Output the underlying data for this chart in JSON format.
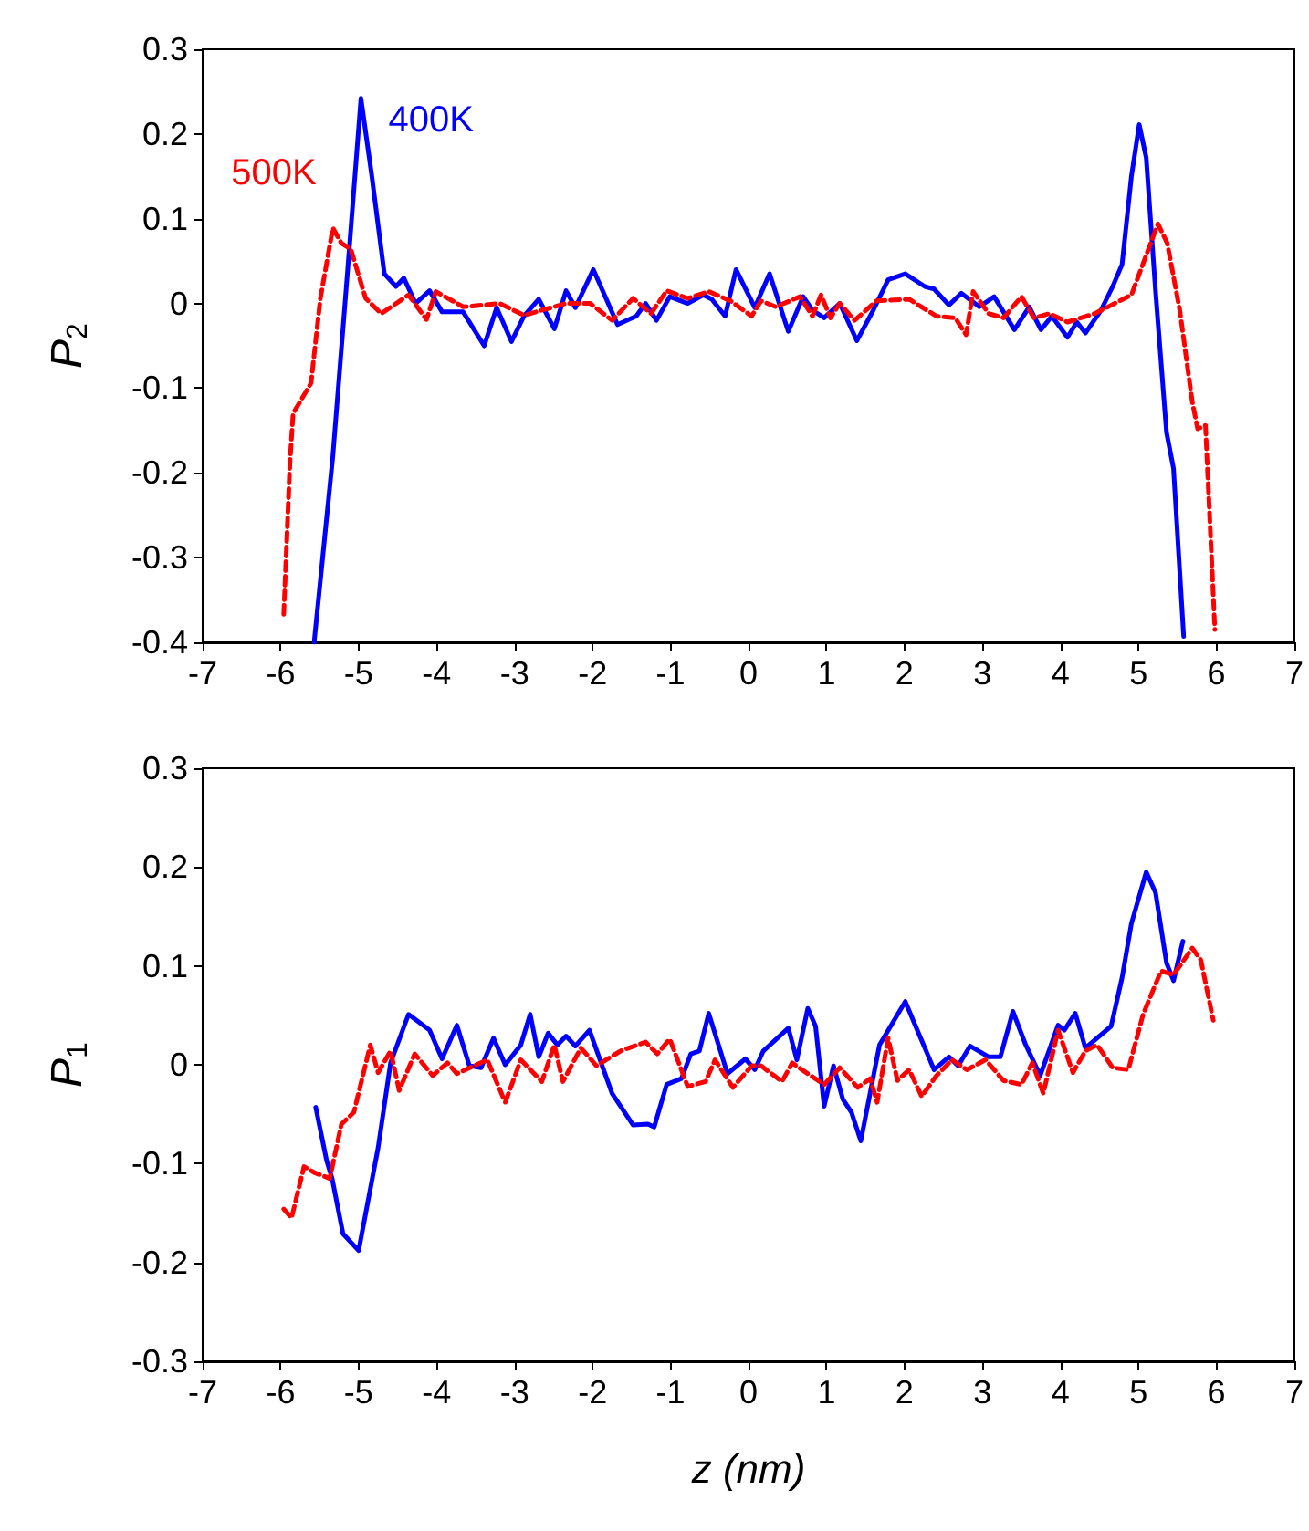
{
  "chart_data": [
    {
      "type": "line",
      "ylabel": "P$_{2}$",
      "xlim": [
        -7,
        7
      ],
      "xticks": [
        -7,
        -6,
        -5,
        -4,
        -3,
        -2,
        -1,
        0,
        1,
        2,
        3,
        4,
        5,
        6,
        7
      ],
      "ylim": [
        -0.4,
        0.3
      ],
      "yticks": [
        -0.4,
        -0.3,
        -0.2,
        -0.1,
        0,
        0.1,
        0.2,
        0.3
      ],
      "grid": false,
      "legend": false,
      "marker": "none",
      "series": [
        {
          "name": "400K",
          "color": "#0000ff",
          "line_style": "solid",
          "x": [
            -5.57,
            -5.33,
            -5.14,
            -4.97,
            -4.83,
            -4.67,
            -4.52,
            -4.42,
            -4.27,
            -4.09,
            -3.93,
            -3.66,
            -3.39,
            -3.23,
            -3.04,
            -2.88,
            -2.69,
            -2.49,
            -2.34,
            -2.22,
            -1.99,
            -1.68,
            -1.44,
            -1.32,
            -1.18,
            -1.01,
            -0.78,
            -0.58,
            -0.47,
            -0.3,
            -0.16,
            0.08,
            0.27,
            0.51,
            0.7,
            0.82,
            0.97,
            1.17,
            1.39,
            1.6,
            1.79,
            2.01,
            2.26,
            2.38,
            2.57,
            2.73,
            2.96,
            3.15,
            3.41,
            3.6,
            3.75,
            3.89,
            4.09,
            4.21,
            4.32,
            4.52,
            4.67,
            4.79,
            4.91,
            5.01,
            5.1,
            5.22,
            5.36,
            5.45,
            5.58
          ],
          "values": [
            -0.4,
            -0.18,
            0.04,
            0.242,
            0.15,
            0.035,
            0.02,
            0.03,
            0.0,
            0.015,
            -0.01,
            -0.01,
            -0.05,
            -0.005,
            -0.045,
            -0.015,
            0.005,
            -0.03,
            0.015,
            -0.005,
            0.04,
            -0.025,
            -0.015,
            0.0,
            -0.02,
            0.008,
            0.0,
            0.01,
            0.005,
            -0.015,
            0.04,
            -0.005,
            0.035,
            -0.033,
            0.008,
            -0.008,
            -0.017,
            0.0,
            -0.044,
            -0.008,
            0.028,
            0.035,
            0.02,
            0.017,
            -0.002,
            0.012,
            -0.004,
            0.008,
            -0.031,
            -0.004,
            -0.031,
            -0.015,
            -0.04,
            -0.022,
            -0.035,
            -0.008,
            0.02,
            0.046,
            0.15,
            0.211,
            0.172,
            0.014,
            -0.152,
            -0.195,
            -0.393
          ]
        },
        {
          "name": "500K",
          "color": "#ff0000",
          "line_style": "dashed",
          "x": [
            -5.96,
            -5.88,
            -5.84,
            -5.61,
            -5.49,
            -5.33,
            -5.22,
            -5.1,
            -4.91,
            -4.71,
            -4.36,
            -4.13,
            -4.01,
            -3.66,
            -3.19,
            -2.88,
            -2.34,
            -2.03,
            -1.75,
            -1.48,
            -1.25,
            -1.05,
            -0.78,
            -0.51,
            -0.23,
            0.04,
            0.16,
            0.35,
            0.66,
            0.82,
            0.93,
            1.05,
            1.17,
            1.36,
            1.64,
            2.06,
            2.41,
            2.65,
            2.79,
            2.88,
            3.08,
            3.27,
            3.5,
            3.66,
            3.86,
            4.09,
            4.44,
            4.91,
            5.1,
            5.25,
            5.37,
            5.53,
            5.69,
            5.76,
            5.86,
            5.98
          ],
          "values": [
            -0.367,
            -0.187,
            -0.13,
            -0.094,
            0.006,
            0.089,
            0.071,
            0.064,
            0.006,
            -0.012,
            0.01,
            -0.019,
            0.014,
            -0.004,
            0.0,
            -0.014,
            0.0,
            0.0,
            -0.02,
            0.006,
            -0.012,
            0.015,
            0.006,
            0.014,
            0.003,
            -0.015,
            0.003,
            -0.004,
            0.008,
            -0.015,
            0.01,
            -0.017,
            0.0,
            -0.02,
            0.003,
            0.005,
            -0.015,
            -0.017,
            -0.037,
            0.014,
            -0.012,
            -0.017,
            0.008,
            -0.017,
            -0.012,
            -0.022,
            -0.012,
            0.01,
            0.057,
            0.094,
            0.071,
            -0.008,
            -0.116,
            -0.148,
            -0.144,
            -0.385
          ]
        }
      ]
    },
    {
      "type": "line",
      "ylabel": "P$_{1}$",
      "xlabel": "z (nm)",
      "xlim": [
        -7,
        7
      ],
      "xticks": [
        -7,
        -6,
        -5,
        -4,
        -3,
        -2,
        -1,
        0,
        1,
        2,
        3,
        4,
        5,
        6,
        7
      ],
      "ylim": [
        -0.3,
        0.3
      ],
      "yticks": [
        -0.3,
        -0.2,
        -0.1,
        0,
        0.1,
        0.2,
        0.3
      ],
      "grid": false,
      "legend": false,
      "marker": "none",
      "series": [
        {
          "color": "#0000ff",
          "line_style": "solid",
          "x": [
            -5.55,
            -5.41,
            -5.34,
            -5.2,
            -5.0,
            -4.75,
            -4.59,
            -4.36,
            -4.09,
            -3.93,
            -3.74,
            -3.58,
            -3.43,
            -3.27,
            -3.12,
            -2.92,
            -2.8,
            -2.69,
            -2.57,
            -2.45,
            -2.34,
            -2.22,
            -2.04,
            -1.75,
            -1.48,
            -1.29,
            -1.21,
            -1.05,
            -0.86,
            -0.74,
            -0.63,
            -0.51,
            -0.27,
            -0.04,
            0.08,
            0.19,
            0.51,
            0.62,
            0.76,
            0.86,
            0.97,
            1.09,
            1.21,
            1.32,
            1.44,
            1.68,
            2.01,
            2.18,
            2.38,
            2.57,
            2.69,
            2.84,
            3.08,
            3.23,
            3.39,
            3.55,
            3.74,
            3.97,
            4.05,
            4.19,
            4.32,
            4.65,
            4.79,
            4.91,
            5.1,
            5.22,
            5.36,
            5.45,
            5.57
          ],
          "values": [
            -0.043,
            -0.097,
            -0.115,
            -0.171,
            -0.188,
            -0.084,
            0.002,
            0.051,
            0.035,
            0.006,
            0.04,
            -0.001,
            -0.003,
            0.027,
            0.0,
            0.02,
            0.051,
            0.008,
            0.032,
            0.02,
            0.029,
            0.019,
            0.035,
            -0.029,
            -0.061,
            -0.06,
            -0.063,
            -0.02,
            -0.014,
            0.011,
            0.014,
            0.052,
            -0.009,
            0.006,
            -0.005,
            0.014,
            0.037,
            0.005,
            0.057,
            0.039,
            -0.042,
            -0.001,
            -0.035,
            -0.048,
            -0.077,
            0.02,
            0.064,
            0.032,
            -0.005,
            0.008,
            -0.001,
            0.019,
            0.008,
            0.008,
            0.054,
            0.021,
            -0.011,
            0.04,
            0.035,
            0.052,
            0.017,
            0.039,
            0.088,
            0.143,
            0.195,
            0.174,
            0.103,
            0.085,
            0.125
          ]
        },
        {
          "color": "#ff0000",
          "line_style": "dashed",
          "x": [
            -5.96,
            -5.86,
            -5.7,
            -5.57,
            -5.37,
            -5.22,
            -5.06,
            -4.85,
            -4.75,
            -4.59,
            -4.48,
            -4.28,
            -4.05,
            -3.86,
            -3.74,
            -3.35,
            -3.12,
            -2.92,
            -2.65,
            -2.49,
            -2.38,
            -2.15,
            -1.95,
            -1.64,
            -1.32,
            -1.17,
            -1.01,
            -0.78,
            -0.55,
            -0.43,
            -0.2,
            0.04,
            0.16,
            0.43,
            0.56,
            0.74,
            0.97,
            1.17,
            1.4,
            1.56,
            1.65,
            1.79,
            1.91,
            2.06,
            2.22,
            2.41,
            2.61,
            2.8,
            3.04,
            3.27,
            3.5,
            3.64,
            3.78,
            3.97,
            4.16,
            4.32,
            4.47,
            4.67,
            4.87,
            5.06,
            5.29,
            5.45,
            5.69,
            5.8,
            5.96
          ],
          "values": [
            -0.146,
            -0.155,
            -0.103,
            -0.109,
            -0.115,
            -0.06,
            -0.048,
            0.02,
            -0.008,
            0.014,
            -0.026,
            0.011,
            -0.011,
            0.002,
            -0.009,
            0.005,
            -0.038,
            0.005,
            -0.017,
            0.02,
            -0.017,
            0.017,
            -0.001,
            0.014,
            0.023,
            0.011,
            0.026,
            -0.022,
            -0.017,
            0.005,
            -0.023,
            -0.001,
            -0.001,
            -0.017,
            0.002,
            -0.008,
            -0.02,
            -0.003,
            -0.023,
            -0.014,
            -0.038,
            0.027,
            -0.016,
            -0.005,
            -0.032,
            -0.011,
            0.005,
            -0.005,
            0.005,
            -0.016,
            -0.02,
            0.002,
            -0.029,
            0.035,
            -0.008,
            0.014,
            0.02,
            -0.003,
            -0.005,
            0.051,
            0.095,
            0.091,
            0.118,
            0.106,
            0.045
          ]
        }
      ]
    }
  ]
}
